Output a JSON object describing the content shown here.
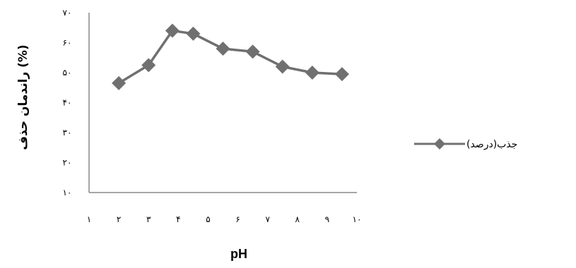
{
  "chart_data": {
    "type": "line",
    "xlabel": "pH",
    "ylabel": "راندمان حذف (%)",
    "x_ticks": [
      "۱",
      "۲",
      "۳",
      "۴",
      "۵",
      "۶",
      "۷",
      "۸",
      "۹",
      "۱۰"
    ],
    "y_ticks": [
      "۱۰",
      "۲۰",
      "۳۰",
      "۴۰",
      "۵۰",
      "۶۰",
      "۷۰"
    ],
    "xlim": [
      1,
      10
    ],
    "ylim": [
      10,
      70
    ],
    "grid": false,
    "legend_position": "right",
    "series": [
      {
        "name": "جذب(درصد)",
        "color": "#707070",
        "marker": "diamond",
        "x": [
          2,
          3,
          3.8,
          4.5,
          5.5,
          6.5,
          7.5,
          8.5,
          9.5
        ],
        "y": [
          46.5,
          52.5,
          64,
          63,
          58,
          57,
          52,
          50,
          49.5
        ]
      }
    ]
  }
}
